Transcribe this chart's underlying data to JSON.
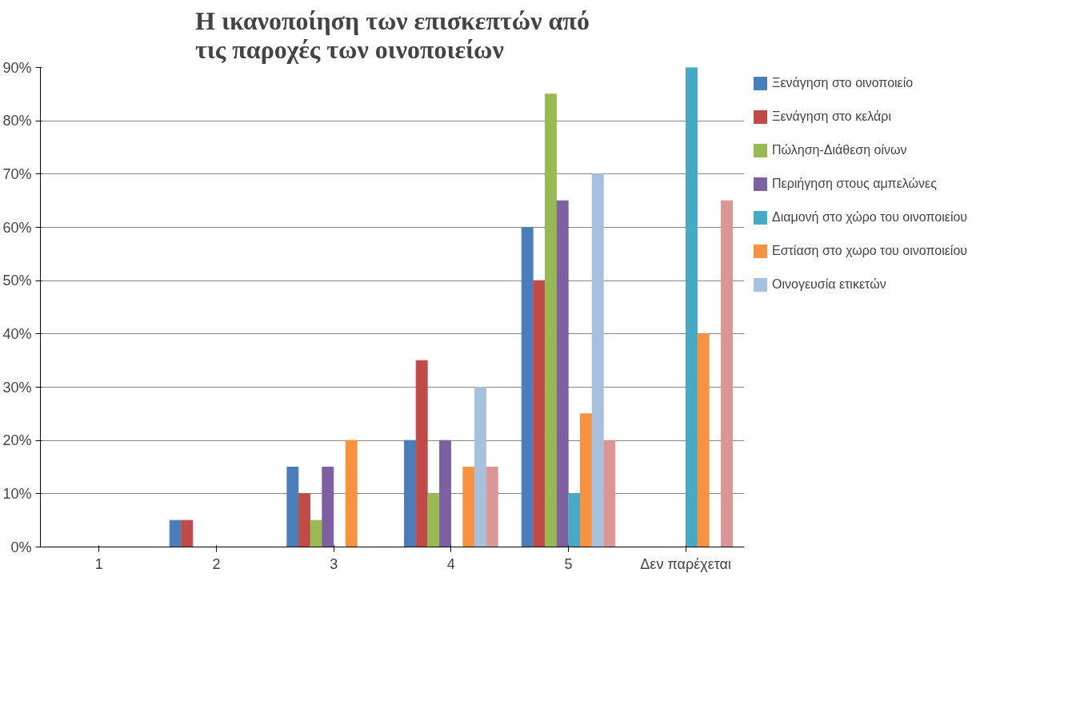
{
  "chart_data": {
    "type": "bar",
    "title": "Η ικανοποίηση των επισκεπτών από τις παροχές των οινοποιείων",
    "categories": [
      "1",
      "2",
      "3",
      "4",
      "5",
      "Δεν παρέχεται"
    ],
    "series": [
      {
        "name": "Ξενάγηση στο οινοποιείο",
        "color": "#4a7ebb",
        "values": [
          0,
          5,
          15,
          20,
          60,
          0
        ]
      },
      {
        "name": "Ξενάγηση στο κελάρι",
        "color": "#be4b48",
        "values": [
          0,
          5,
          10,
          35,
          50,
          0
        ]
      },
      {
        "name": "Πώληση-Διάθεση οίνων",
        "color": "#98b954",
        "values": [
          0,
          0,
          5,
          10,
          85,
          0
        ]
      },
      {
        "name": "Περιήγηση στους αμπελώνες",
        "color": "#7d60a0",
        "values": [
          0,
          0,
          15,
          20,
          65,
          0
        ]
      },
      {
        "name": "Διαμονή στο χώρο του οινοποιείου",
        "color": "#46aac5",
        "values": [
          0,
          0,
          0,
          0,
          10,
          90
        ]
      },
      {
        "name": "Εστίαση στο χωρο του οινοποιείου",
        "color": "#f69240",
        "values": [
          0,
          0,
          20,
          15,
          25,
          40
        ]
      },
      {
        "name": "Οινογευσία ετικετών",
        "color": "#a7c0de",
        "values": [
          0,
          0,
          0,
          30,
          70,
          0
        ]
      },
      {
        "color": "#d99694",
        "values": [
          0,
          0,
          0,
          15,
          20,
          65
        ]
      }
    ],
    "ylim": [
      0,
      90
    ],
    "yticks": [
      {
        "value": 0,
        "label": "0%"
      },
      {
        "value": 10,
        "label": "10%"
      },
      {
        "value": 20,
        "label": "20%"
      },
      {
        "value": 30,
        "label": "30%"
      },
      {
        "value": 40,
        "label": "40%"
      },
      {
        "value": 50,
        "label": "50%"
      },
      {
        "value": 60,
        "label": "60%"
      },
      {
        "value": 70,
        "label": "70%"
      },
      {
        "value": 80,
        "label": "80%"
      },
      {
        "value": 90,
        "label": "90%"
      }
    ],
    "grid": "y",
    "legend": "right"
  }
}
